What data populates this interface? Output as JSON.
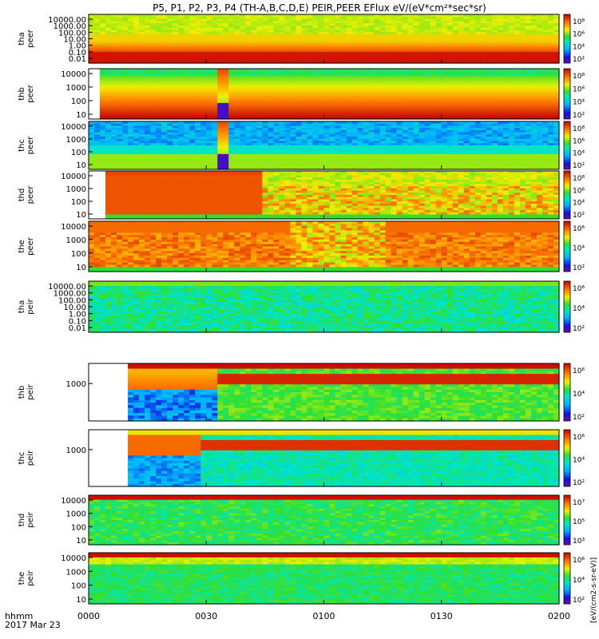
{
  "title": "P5, P1, P2, P3, P4 (TH-A,B,C,D,E) PEIR,PEER EFlux eV/(eV*cm²*sec*sr)",
  "time_axis": {
    "label_line1": "hhmm",
    "label_line2": "2017 Mar 23",
    "ticks": [
      "0000",
      "0030",
      "0100",
      "0130",
      "0200"
    ]
  },
  "colorbar_label": "[eV/(cm2-s-sr-eV)]",
  "chart_data": [
    {
      "type": "heatmap",
      "name": "tha-peer",
      "ylabel": [
        "tha",
        "peer"
      ],
      "yscale": "log",
      "yticks": [
        "10000.00",
        "1000.00",
        "100.00",
        "10.00",
        "1.00",
        "0.10",
        "0.01"
      ],
      "cbar_ticks": [
        "10⁸",
        "10⁶",
        "10⁴",
        "10²"
      ],
      "profile": "peer_a"
    },
    {
      "type": "heatmap",
      "name": "thb-peer",
      "ylabel": [
        "thb",
        "peer"
      ],
      "yscale": "log",
      "yticks": [
        "10000",
        "1000",
        "100",
        "10"
      ],
      "cbar_ticks": [
        "10⁸",
        "10⁶",
        "10⁴",
        "10²"
      ],
      "profile": "peer_b"
    },
    {
      "type": "heatmap",
      "name": "thc-peer",
      "ylabel": [
        "thc",
        "peer"
      ],
      "yscale": "log",
      "yticks": [
        "10000",
        "1000",
        "100",
        "10"
      ],
      "cbar_ticks": [
        "10⁸",
        "10⁶",
        "10⁴",
        "10²"
      ],
      "profile": "peer_c"
    },
    {
      "type": "heatmap",
      "name": "thd-peer",
      "ylabel": [
        "thd",
        "peer"
      ],
      "yscale": "log",
      "yticks": [
        "10000",
        "1000",
        "100",
        "10"
      ],
      "cbar_ticks": [
        "10⁸",
        "10⁶",
        "10⁴",
        "10²"
      ],
      "profile": "peer_d"
    },
    {
      "type": "heatmap",
      "name": "the-peer",
      "ylabel": [
        "the",
        "peer"
      ],
      "yscale": "log",
      "yticks": [
        "10000",
        "1000",
        "100",
        "10"
      ],
      "cbar_ticks": [
        "10⁶",
        "10⁴",
        "10²"
      ],
      "profile": "peer_e"
    },
    {
      "type": "heatmap",
      "name": "tha-peir",
      "ylabel": [
        "tha",
        "peir"
      ],
      "yscale": "log",
      "yticks": [
        "10000.00",
        "1000.00",
        "100.00",
        "10.00",
        "1.00",
        "0.10",
        "0.01"
      ],
      "cbar_ticks": [
        "10⁶",
        "10⁴",
        "10²"
      ],
      "profile": "peir_a"
    },
    {
      "type": "heatmap",
      "name": "thb-peir",
      "ylabel": [
        "thb",
        "peir"
      ],
      "yscale": "log",
      "yticks": [
        "1000"
      ],
      "cbar_ticks": [
        "10⁶",
        "10⁴",
        "10²"
      ],
      "profile": "peir_b"
    },
    {
      "type": "heatmap",
      "name": "thc-peir",
      "ylabel": [
        "thc",
        "peir"
      ],
      "yscale": "log",
      "yticks": [
        "1000"
      ],
      "cbar_ticks": [
        "10⁶",
        "10⁴",
        "10²"
      ],
      "profile": "peir_c"
    },
    {
      "type": "heatmap",
      "name": "thd-peir",
      "ylabel": [
        "thd",
        "peir"
      ],
      "yscale": "log",
      "yticks": [
        "10000",
        "1000",
        "100",
        "10"
      ],
      "cbar_ticks": [
        "10⁷",
        "10⁵",
        "10³"
      ],
      "profile": "peir_d"
    },
    {
      "type": "heatmap",
      "name": "the-peir",
      "ylabel": [
        "the",
        "peir"
      ],
      "yscale": "log",
      "yticks": [
        "10000",
        "1000",
        "100",
        "10"
      ],
      "cbar_ticks": [
        "10⁶",
        "10⁴",
        "10²"
      ],
      "profile": "peir_e"
    }
  ]
}
